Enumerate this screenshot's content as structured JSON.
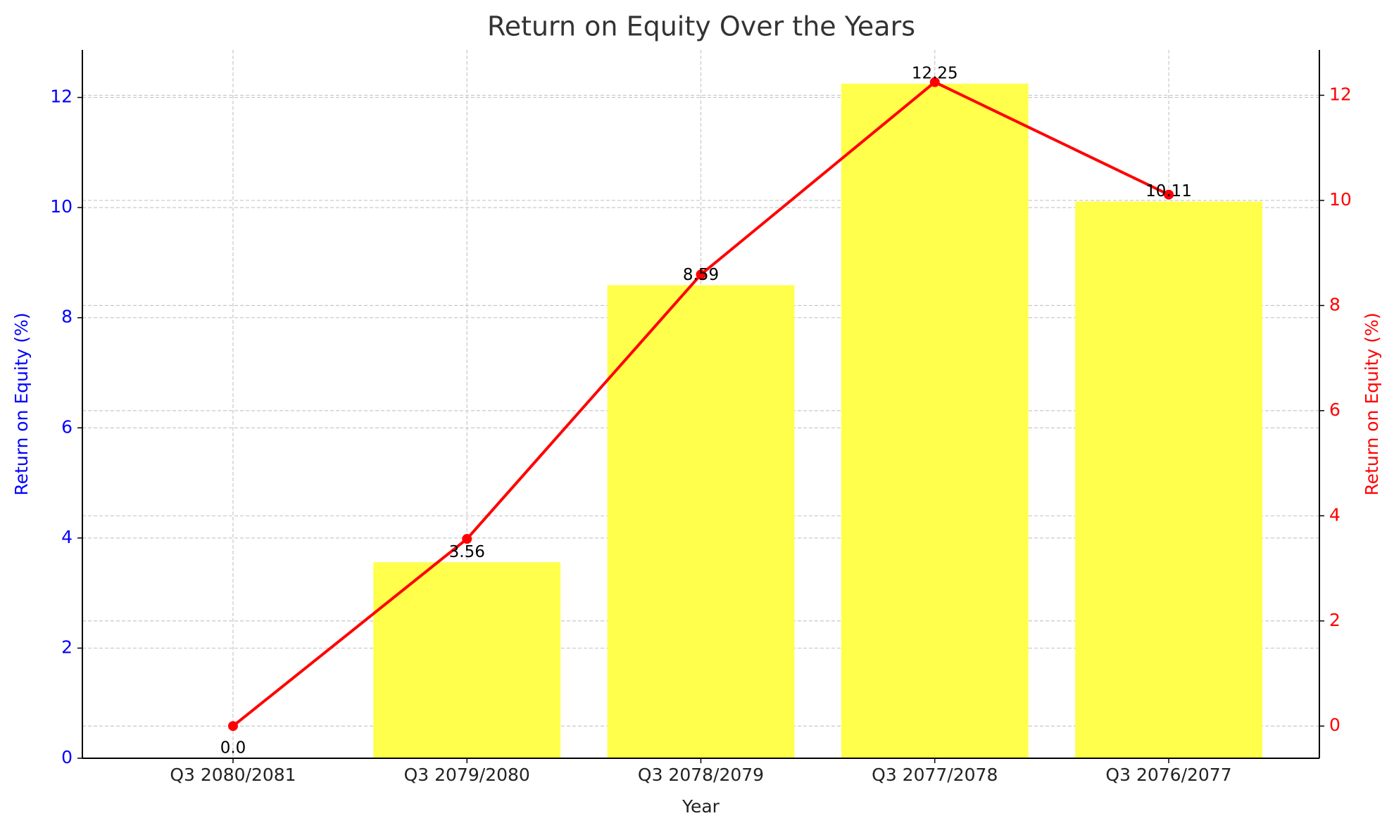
{
  "chart_data": {
    "type": "combo",
    "title": "Return on Equity Over the Years",
    "xlabel": "Year",
    "ylabel": "Return on Equity (%)",
    "y2label": "Return on Equity (%)",
    "categories": [
      "Q3 2080/2081",
      "Q3 2079/2080",
      "Q3 2078/2079",
      "Q3 2077/2078",
      "Q3 2076/2077"
    ],
    "series": [
      {
        "type": "bar",
        "color": "#ffff4c",
        "values": [
          0,
          3.56,
          8.59,
          12.25,
          10.11
        ],
        "value_labels": [
          "0.0",
          "3.56",
          "8.59",
          "12.25",
          "10.11"
        ]
      },
      {
        "type": "line",
        "axis": "y2",
        "color": "#ff0000",
        "values": [
          0,
          3.56,
          8.59,
          12.25,
          10.11
        ]
      }
    ],
    "ylim": [
      0,
      12.8625
    ],
    "yticks": [
      0,
      2,
      4,
      6,
      8,
      10,
      12
    ],
    "ycolor": "#0000ff",
    "y2lim": [
      -0.6125,
      12.8625
    ],
    "y2ticks": [
      0,
      2,
      4,
      6,
      8,
      10,
      12
    ],
    "y2color": "#ff0000",
    "grid": true
  }
}
